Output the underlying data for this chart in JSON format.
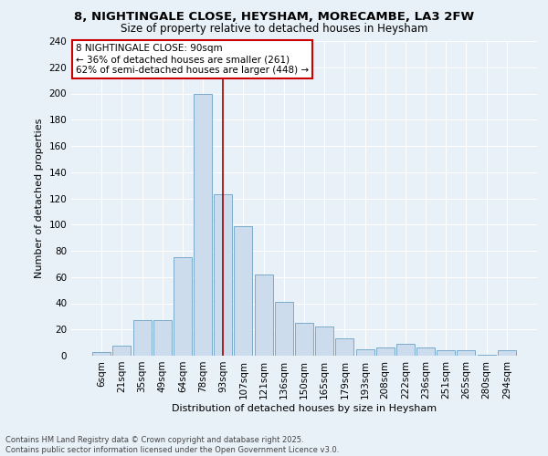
{
  "title": "8, NIGHTINGALE CLOSE, HEYSHAM, MORECAMBE, LA3 2FW",
  "subtitle": "Size of property relative to detached houses in Heysham",
  "xlabel": "Distribution of detached houses by size in Heysham",
  "ylabel": "Number of detached properties",
  "bar_labels": [
    "6sqm",
    "21sqm",
    "35sqm",
    "49sqm",
    "64sqm",
    "78sqm",
    "93sqm",
    "107sqm",
    "121sqm",
    "136sqm",
    "150sqm",
    "165sqm",
    "179sqm",
    "193sqm",
    "208sqm",
    "222sqm",
    "236sqm",
    "251sqm",
    "265sqm",
    "280sqm",
    "294sqm"
  ],
  "bar_values": [
    3,
    8,
    27,
    27,
    75,
    200,
    123,
    99,
    62,
    41,
    25,
    22,
    13,
    5,
    6,
    9,
    6,
    4,
    4,
    1,
    4
  ],
  "bar_color": "#cddcec",
  "bar_edge_color": "#7aaacb",
  "background_color": "#e8f0f8",
  "grid_color": "#ffffff",
  "vline_x_index": 6,
  "vline_color": "#990000",
  "annotation_text": "8 NIGHTINGALE CLOSE: 90sqm\n← 36% of detached houses are smaller (261)\n62% of semi-detached houses are larger (448) →",
  "annotation_box_facecolor": "#ffffff",
  "annotation_box_edgecolor": "#cc0000",
  "footer_text": "Contains HM Land Registry data © Crown copyright and database right 2025.\nContains public sector information licensed under the Open Government Licence v3.0.",
  "ylim": [
    0,
    240
  ],
  "yticks": [
    0,
    20,
    40,
    60,
    80,
    100,
    120,
    140,
    160,
    180,
    200,
    220,
    240
  ],
  "title_fontsize": 9.5,
  "subtitle_fontsize": 8.5,
  "ylabel_fontsize": 8,
  "xlabel_fontsize": 8,
  "tick_fontsize": 7.5,
  "footer_fontsize": 6
}
